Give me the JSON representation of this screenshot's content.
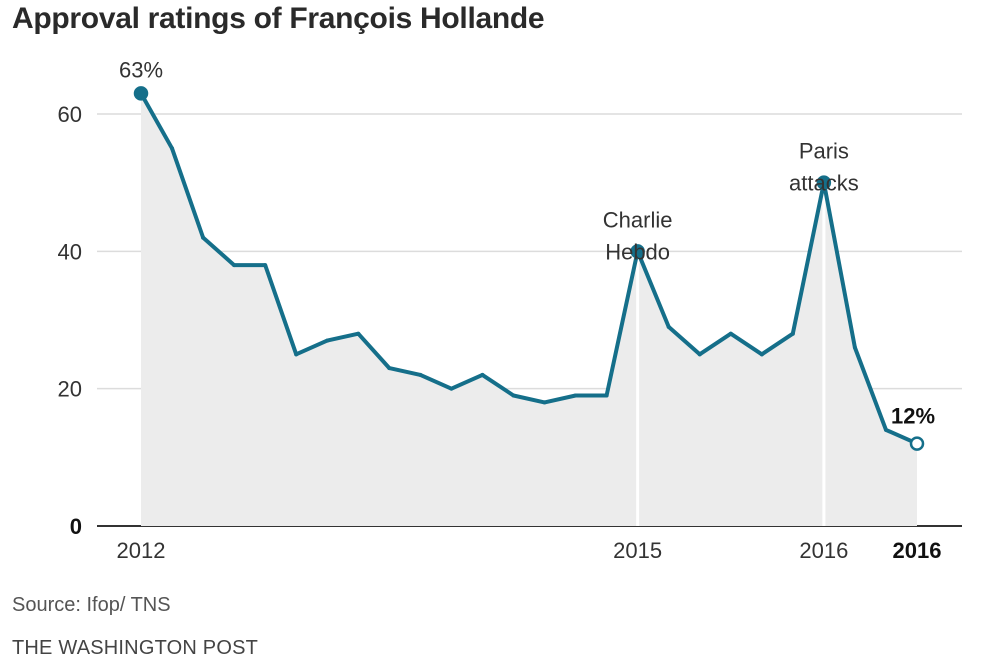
{
  "title": "Approval ratings of François Hollande",
  "source": "Source: Ifop/ TNS",
  "publisher": "THE WASHINGTON POST",
  "colors": {
    "line": "#156f8a",
    "area": "#ececec",
    "grid": "#dcdcdc",
    "axis": "#333333"
  },
  "chart_data": {
    "type": "area",
    "title": "Approval ratings of François Hollande",
    "xlabel": "",
    "ylabel": "",
    "ylim": [
      0,
      68
    ],
    "yticks": [
      0,
      20,
      40,
      60
    ],
    "grid": true,
    "x_tick_labels": [
      {
        "index": 0,
        "label": "2012",
        "bold": false
      },
      {
        "index": 16,
        "label": "2015",
        "bold": false
      },
      {
        "index": 22,
        "label": "2016",
        "bold": false
      },
      {
        "index": 25,
        "label": "2016",
        "bold": true
      }
    ],
    "values": [
      63,
      55,
      42,
      38,
      38,
      25,
      27,
      28,
      23,
      22,
      20,
      22,
      19,
      18,
      19,
      19,
      40,
      29,
      25,
      28,
      25,
      28,
      50,
      26,
      14,
      12
    ],
    "annotations": [
      {
        "index": 0,
        "lines": [
          "63%"
        ],
        "bold": false
      },
      {
        "index": 16,
        "lines": [
          "Charlie",
          "Hebdo"
        ],
        "bold": false
      },
      {
        "index": 22,
        "lines": [
          "Paris",
          "attacks"
        ],
        "bold": false
      },
      {
        "index": 25,
        "lines": [
          "12%"
        ],
        "bold": true
      }
    ]
  }
}
